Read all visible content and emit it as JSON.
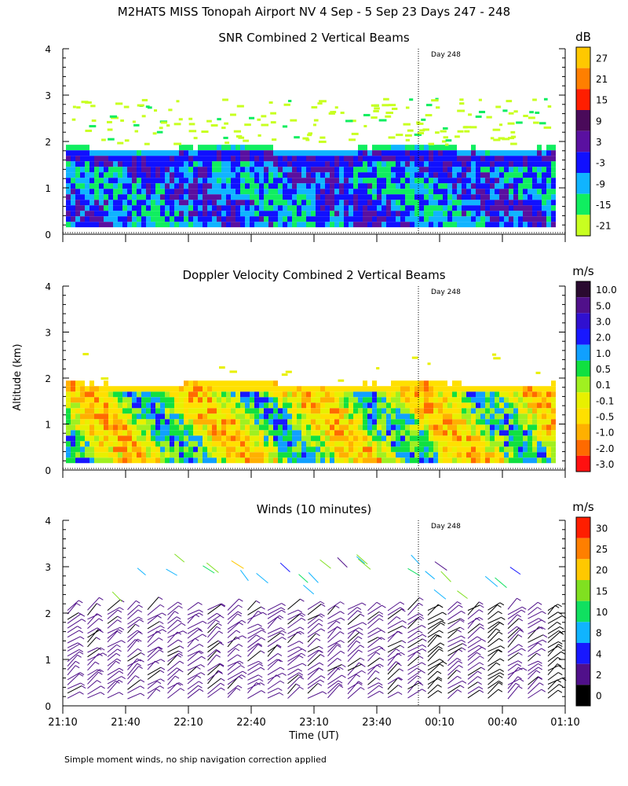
{
  "page_title": "M2HATS MISS Tonopah Airport NV   4 Sep -  5 Sep 23 Days 247 - 248",
  "footnote": "Simple moment winds, no ship navigation correction applied",
  "shared_ylabel": "Altitude (km)",
  "chart_data": [
    {
      "type": "heatmap",
      "title": "SNR Combined 2 Vertical Beams",
      "xlabel": "",
      "ylabel": "Altitude (km)",
      "ylim": [
        0,
        4
      ],
      "yticks": [
        "0",
        "1",
        "2",
        "3",
        "4"
      ],
      "day_marker": "Day 248",
      "colorbar": {
        "unit": "dB",
        "labels": [
          "27",
          "21",
          "15",
          "9",
          "3",
          "-3",
          "-9",
          "-15",
          "-21"
        ],
        "colors": [
          "#ffc800",
          "#ff7f00",
          "#ff1e00",
          "#4a0a5a",
          "#5a10a0",
          "#1010ff",
          "#10b4ff",
          "#10ee60",
          "#c8ff20"
        ]
      }
    },
    {
      "type": "heatmap",
      "title": "Doppler Velocity Combined 2 Vertical Beams",
      "xlabel": "",
      "ylabel": "Altitude (km)",
      "ylim": [
        0,
        4
      ],
      "yticks": [
        "0",
        "1",
        "2",
        "3",
        "4"
      ],
      "day_marker": "Day 248",
      "colorbar": {
        "unit": "m/s",
        "labels": [
          "10.0",
          "5.0",
          "3.0",
          "2.0",
          "1.0",
          "0.5",
          "0.1",
          "-0.1",
          "-0.5",
          "-1.0",
          "-2.0",
          "-3.0"
        ],
        "colors": [
          "#2a0a30",
          "#50108a",
          "#3010d0",
          "#1818ff",
          "#10a0ff",
          "#10e040",
          "#a0f020",
          "#e8f000",
          "#ffe000",
          "#ffb000",
          "#ff6a00",
          "#ff1010"
        ]
      }
    },
    {
      "type": "scatter",
      "title": "Winds (10 minutes)",
      "xlabel": "Time (UT)",
      "ylabel": "Altitude (km)",
      "ylim": [
        0,
        4
      ],
      "yticks": [
        "0",
        "1",
        "2",
        "3",
        "4"
      ],
      "xticks": [
        "21:10",
        "21:40",
        "22:10",
        "22:40",
        "23:10",
        "23:40",
        "00:10",
        "00:40",
        "01:10"
      ],
      "day_marker": "Day 248",
      "colorbar": {
        "unit": "m/s",
        "labels": [
          "30",
          "25",
          "20",
          "15",
          "10",
          "8",
          "4",
          "2",
          "0"
        ],
        "colors": [
          "#ff1e00",
          "#ff7f00",
          "#ffc800",
          "#80e020",
          "#10e060",
          "#10b4ff",
          "#1818ff",
          "#50108a",
          "#000000"
        ]
      }
    }
  ]
}
